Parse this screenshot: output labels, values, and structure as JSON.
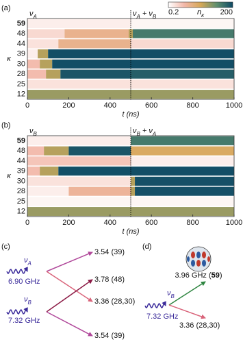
{
  "panels": [
    {
      "label": "(a)",
      "ylabel": "κ",
      "xlabel": "t (ns)",
      "xlim": [
        0,
        1000
      ],
      "xticks": [
        0,
        200,
        400,
        600,
        800,
        1000
      ],
      "switch": 500,
      "annotations": [
        [
          {
            "text": "ν",
            "sub": "A"
          }
        ],
        [
          {
            "text": "ν",
            "sub": "A"
          },
          {
            "text": " + ν",
            "sub": "B"
          }
        ]
      ],
      "rows": [
        {
          "kappa": "59",
          "bold": true,
          "segments": [
            [
              0,
              500,
              0.3
            ],
            [
              500,
              1000,
              0.25
            ]
          ]
        },
        {
          "kappa": "48",
          "bold": false,
          "segments": [
            [
              0,
              180,
              0.5
            ],
            [
              180,
              490,
              2
            ],
            [
              490,
              510,
              10
            ],
            [
              510,
              1000,
              60
            ]
          ]
        },
        {
          "kappa": "44",
          "bold": false,
          "segments": [
            [
              0,
              150,
              0.4
            ],
            [
              150,
              500,
              2
            ],
            [
              500,
              1000,
              0.5
            ]
          ]
        },
        {
          "kappa": "39",
          "bold": false,
          "segments": [
            [
              0,
              50,
              0.3
            ],
            [
              50,
              100,
              10
            ],
            [
              100,
              1000,
              180
            ]
          ]
        },
        {
          "kappa": "30",
          "bold": false,
          "segments": [
            [
              0,
              60,
              1
            ],
            [
              60,
              120,
              10
            ],
            [
              120,
              1000,
              180
            ]
          ]
        },
        {
          "kappa": "28",
          "bold": false,
          "segments": [
            [
              0,
              90,
              1
            ],
            [
              90,
              160,
              10
            ],
            [
              160,
              500,
              150
            ],
            [
              500,
              1000,
              120
            ]
          ]
        },
        {
          "kappa": "25",
          "bold": false,
          "segments": [
            [
              0,
              1000,
              0.4
            ]
          ]
        },
        {
          "kappa": "12",
          "bold": false,
          "segments": [
            [
              0,
              1000,
              15
            ]
          ]
        }
      ]
    },
    {
      "label": "(b)",
      "ylabel": "κ",
      "xlabel": "t (ns)",
      "xlim": [
        0,
        1000
      ],
      "xticks": [
        0,
        200,
        400,
        600,
        800,
        1000
      ],
      "switch": 500,
      "annotations": [
        [
          {
            "text": "ν",
            "sub": "B"
          }
        ],
        [
          {
            "text": "ν",
            "sub": "B"
          },
          {
            "text": " + ν",
            "sub": "A"
          }
        ]
      ],
      "rows": [
        {
          "kappa": "59",
          "bold": true,
          "segments": [
            [
              0,
              500,
              0.3
            ],
            [
              500,
              1000,
              60
            ]
          ]
        },
        {
          "kappa": "48",
          "bold": false,
          "segments": [
            [
              0,
              80,
              1
            ],
            [
              80,
              200,
              10
            ],
            [
              200,
              500,
              150
            ],
            [
              500,
              1000,
              5
            ]
          ]
        },
        {
          "kappa": "44",
          "bold": false,
          "segments": [
            [
              0,
              500,
              0.8
            ],
            [
              500,
              1000,
              0.3
            ]
          ]
        },
        {
          "kappa": "39",
          "bold": false,
          "segments": [
            [
              0,
              60,
              1
            ],
            [
              60,
              150,
              10
            ],
            [
              150,
              1000,
              180
            ]
          ]
        },
        {
          "kappa": "30",
          "bold": false,
          "segments": [
            [
              0,
              500,
              0.4
            ],
            [
              500,
              520,
              10
            ],
            [
              520,
              1000,
              170
            ]
          ]
        },
        {
          "kappa": "28",
          "bold": false,
          "segments": [
            [
              0,
              200,
              0.3
            ],
            [
              200,
              500,
              1.5
            ],
            [
              500,
              520,
              10
            ],
            [
              520,
              1000,
              170
            ]
          ]
        },
        {
          "kappa": "25",
          "bold": false,
          "segments": [
            [
              0,
              1000,
              0.25
            ]
          ]
        },
        {
          "kappa": "12",
          "bold": false,
          "segments": [
            [
              0,
              1000,
              15
            ]
          ]
        }
      ]
    }
  ],
  "colorbar": {
    "label": [
      {
        "text": "n",
        "sub": "κ"
      }
    ],
    "lim": [
      0.2,
      200
    ],
    "ticks": [
      0.2,
      200
    ],
    "log": true,
    "colors": [
      "#ffffff",
      "#f2b7a8",
      "#d6a857",
      "#5f8f6e",
      "#0e4a66"
    ]
  },
  "panel_c": {
    "label": "(c)",
    "sources": [
      {
        "nu": [
          {
            "text": "ν",
            "sub": "A"
          }
        ],
        "freq": "6.90 GHz",
        "outputs": [
          {
            "parts": [
              "3.54 (39)"
            ],
            "color": "#b0489a"
          },
          {
            "parts": [
              "3.36 (28,30)"
            ],
            "color": "#d9647a"
          }
        ]
      },
      {
        "nu": [
          {
            "text": "ν",
            "sub": "B"
          }
        ],
        "freq": "7.32 GHz",
        "outputs": [
          {
            "parts": [
              "3.78 (48)"
            ],
            "color": "#8c1b46"
          },
          {
            "parts": [
              "3.54 (39)"
            ],
            "color": "#b0489a"
          }
        ]
      }
    ]
  },
  "panel_d": {
    "label": "(d)",
    "nu": [
      {
        "text": "ν",
        "sub": "B"
      }
    ],
    "freq": "7.32 GHz",
    "outputs": [
      {
        "parts": [
          "3.96 GHz (",
          "59",
          ")"
        ],
        "color": "#2e8540"
      },
      {
        "parts": [
          "3.36 (28,30)"
        ],
        "color": "#d9647a"
      }
    ]
  }
}
